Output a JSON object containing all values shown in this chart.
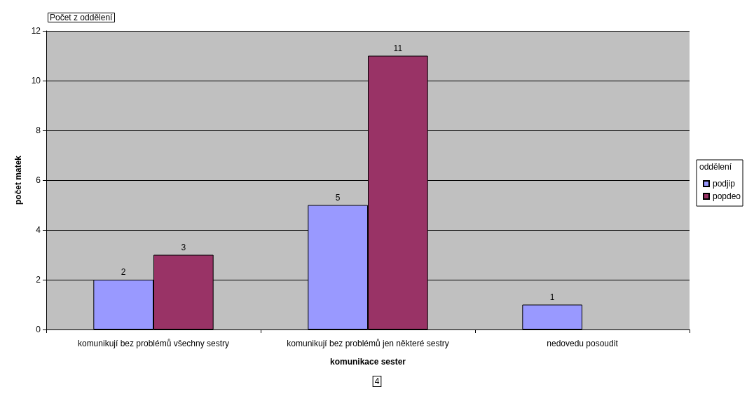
{
  "chart_data": {
    "type": "bar",
    "title": "Počet z oddělení",
    "xlabel": "komunikace sester",
    "ylabel": "počet matek",
    "legend_title": "oddělení",
    "categories": [
      "komunikují bez problémů všechny sestry",
      "komunikují bez problémů jen některé sestry",
      "nedovedu posoudit"
    ],
    "series": [
      {
        "name": "podjip",
        "color": "#9999ff",
        "values": [
          2,
          5,
          1
        ]
      },
      {
        "name": "popdeo",
        "color": "#993366",
        "values": [
          3,
          11,
          null
        ]
      }
    ],
    "ylim": [
      0,
      12
    ],
    "yticks": [
      0,
      2,
      4,
      6,
      8,
      10,
      12
    ],
    "grid": "y",
    "legend": "right",
    "data_labels": true,
    "annotations": [
      "4"
    ]
  }
}
